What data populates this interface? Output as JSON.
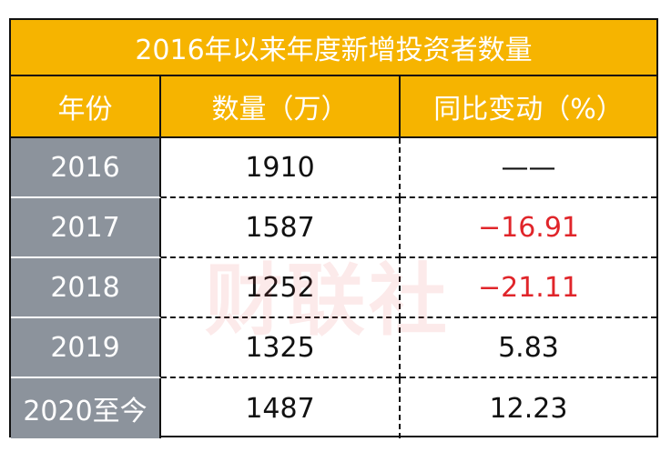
{
  "table": {
    "title": "2016年以来年度新增投资者数量",
    "columns": [
      "年份",
      "数量（万）",
      "同比变动（%）"
    ],
    "rows": [
      [
        "2016",
        "1910",
        "——"
      ],
      [
        "2017",
        "1587",
        "−16.91"
      ],
      [
        "2018",
        "1252",
        "−21.11"
      ],
      [
        "2019",
        "1325",
        "5.83"
      ],
      [
        "2020至今",
        "1487",
        "12.23"
      ]
    ]
  },
  "watermark": "财联社"
}
